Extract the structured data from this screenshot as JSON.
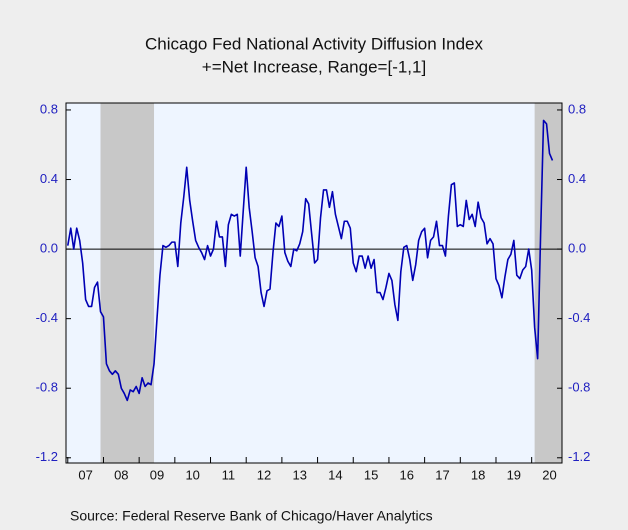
{
  "chart_data": {
    "type": "line",
    "title": "Chicago Fed National Activity Diffusion Index",
    "subtitle": "+=Net Increase, Range=[-1,1]",
    "source": "Source:  Federal Reserve Bank of Chicago/Haver Analytics",
    "x": [
      2007,
      2007.083,
      2007.167,
      2007.25,
      2007.333,
      2007.417,
      2007.5,
      2007.583,
      2007.667,
      2007.75,
      2007.833,
      2007.917,
      2008,
      2008.083,
      2008.167,
      2008.25,
      2008.333,
      2008.417,
      2008.5,
      2008.583,
      2008.667,
      2008.75,
      2008.833,
      2008.917,
      2009,
      2009.083,
      2009.167,
      2009.25,
      2009.333,
      2009.417,
      2009.5,
      2009.583,
      2009.667,
      2009.75,
      2009.833,
      2009.917,
      2010,
      2010.083,
      2010.167,
      2010.25,
      2010.333,
      2010.417,
      2010.5,
      2010.583,
      2010.667,
      2010.75,
      2010.833,
      2010.917,
      2011,
      2011.083,
      2011.167,
      2011.25,
      2011.333,
      2011.417,
      2011.5,
      2011.583,
      2011.667,
      2011.75,
      2011.833,
      2011.917,
      2012,
      2012.083,
      2012.167,
      2012.25,
      2012.333,
      2012.417,
      2012.5,
      2012.583,
      2012.667,
      2012.75,
      2012.833,
      2012.917,
      2013,
      2013.083,
      2013.167,
      2013.25,
      2013.333,
      2013.417,
      2013.5,
      2013.583,
      2013.667,
      2013.75,
      2013.833,
      2013.917,
      2014,
      2014.083,
      2014.167,
      2014.25,
      2014.333,
      2014.417,
      2014.5,
      2014.583,
      2014.667,
      2014.75,
      2014.833,
      2014.917,
      2015,
      2015.083,
      2015.167,
      2015.25,
      2015.333,
      2015.417,
      2015.5,
      2015.583,
      2015.667,
      2015.75,
      2015.833,
      2015.917,
      2016,
      2016.083,
      2016.167,
      2016.25,
      2016.333,
      2016.417,
      2016.5,
      2016.583,
      2016.667,
      2016.75,
      2016.833,
      2016.917,
      2017,
      2017.083,
      2017.167,
      2017.25,
      2017.333,
      2017.417,
      2017.5,
      2017.583,
      2017.667,
      2017.75,
      2017.833,
      2017.917,
      2018,
      2018.083,
      2018.167,
      2018.25,
      2018.333,
      2018.417,
      2018.5,
      2018.583,
      2018.667,
      2018.75,
      2018.833,
      2018.917,
      2019,
      2019.083,
      2019.167,
      2019.25,
      2019.333,
      2019.417,
      2019.5,
      2019.583,
      2019.667,
      2019.75,
      2019.833,
      2019.917,
      2020,
      2020.083,
      2020.167,
      2020.25,
      2020.333,
      2020.417,
      2020.5,
      2020.583
    ],
    "series": [
      {
        "color": "#0000b4",
        "values": [
          0.02,
          0.12,
          0.0,
          0.12,
          0.05,
          -0.08,
          -0.29,
          -0.33,
          -0.33,
          -0.22,
          -0.19,
          -0.36,
          -0.39,
          -0.66,
          -0.7,
          -0.72,
          -0.7,
          -0.72,
          -0.8,
          -0.83,
          -0.87,
          -0.81,
          -0.82,
          -0.79,
          -0.83,
          -0.74,
          -0.79,
          -0.77,
          -0.78,
          -0.66,
          -0.4,
          -0.15,
          0.02,
          0.01,
          0.02,
          0.04,
          0.04,
          -0.1,
          0.15,
          0.3,
          0.47,
          0.28,
          0.16,
          0.05,
          0.01,
          -0.02,
          -0.06,
          0.02,
          -0.04,
          0.0,
          0.16,
          0.07,
          0.07,
          -0.1,
          0.14,
          0.2,
          0.19,
          0.2,
          -0.04,
          0.22,
          0.47,
          0.24,
          0.1,
          -0.05,
          -0.1,
          -0.25,
          -0.33,
          -0.24,
          -0.23,
          -0.02,
          0.15,
          0.13,
          0.19,
          -0.02,
          -0.07,
          -0.1,
          0.0,
          -0.01,
          0.03,
          0.1,
          0.29,
          0.26,
          0.09,
          -0.08,
          -0.06,
          0.18,
          0.34,
          0.34,
          0.24,
          0.33,
          0.2,
          0.13,
          0.06,
          0.16,
          0.16,
          0.12,
          -0.08,
          -0.13,
          -0.04,
          -0.04,
          -0.11,
          -0.04,
          -0.11,
          -0.06,
          -0.25,
          -0.25,
          -0.29,
          -0.22,
          -0.14,
          -0.18,
          -0.32,
          -0.41,
          -0.13,
          0.01,
          0.02,
          -0.06,
          -0.18,
          -0.09,
          0.05,
          0.1,
          0.12,
          -0.05,
          0.05,
          0.07,
          0.16,
          0.02,
          0.02,
          -0.04,
          0.19,
          0.37,
          0.38,
          0.13,
          0.14,
          0.13,
          0.28,
          0.17,
          0.2,
          0.13,
          0.27,
          0.18,
          0.15,
          0.03,
          0.06,
          0.03,
          -0.17,
          -0.21,
          -0.28,
          -0.16,
          -0.06,
          -0.03,
          0.05,
          -0.15,
          -0.17,
          -0.12,
          -0.1,
          0.0,
          -0.12,
          -0.45,
          -0.63,
          0.08,
          0.74,
          0.72,
          0.55,
          0.51
        ]
      }
    ],
    "xlim": [
      2006.95,
      2020.85
    ],
    "xticks": [
      {
        "value": 2007,
        "label": "07"
      },
      {
        "value": 2008,
        "label": "08"
      },
      {
        "value": 2009,
        "label": "09"
      },
      {
        "value": 2010,
        "label": "10"
      },
      {
        "value": 2011,
        "label": "11"
      },
      {
        "value": 2012,
        "label": "12"
      },
      {
        "value": 2013,
        "label": "13"
      },
      {
        "value": 2014,
        "label": "14"
      },
      {
        "value": 2015,
        "label": "15"
      },
      {
        "value": 2016,
        "label": "16"
      },
      {
        "value": 2017,
        "label": "17"
      },
      {
        "value": 2018,
        "label": "18"
      },
      {
        "value": 2019,
        "label": "19"
      },
      {
        "value": 2020,
        "label": "20"
      }
    ],
    "ylim": [
      -1.23,
      0.84
    ],
    "yticks": [
      {
        "value": 0.8,
        "label": "0.8"
      },
      {
        "value": 0.4,
        "label": "0.4"
      },
      {
        "value": 0,
        "label": "0.0"
      },
      {
        "value": -0.4,
        "label": "-0.4"
      },
      {
        "value": -0.8,
        "label": "-0.8"
      },
      {
        "value": -1.2,
        "label": "-1.2"
      }
    ],
    "recessions": [
      [
        2007.917,
        2009.417
      ],
      [
        2020.083,
        2020.85
      ]
    ],
    "recession_color": "#c8c8c8",
    "zero_line": true
  }
}
